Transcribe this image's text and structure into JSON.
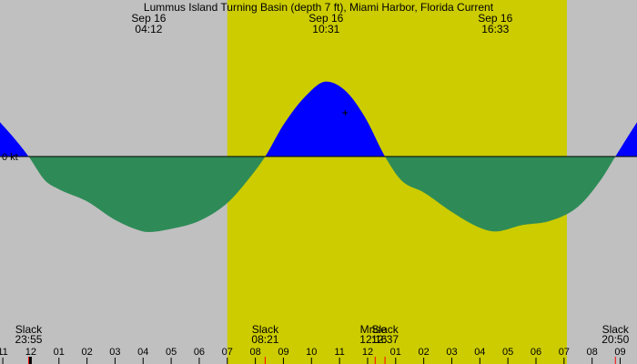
{
  "title": "Lummus Island Turning Basin (depth 7 ft), Miami Harbor, Florida Current",
  "chart_data": {
    "type": "area",
    "title": "Lummus Island Turning Basin (depth 7 ft), Miami Harbor, Florida Current",
    "xlabel": "",
    "ylabel": "",
    "y_unit": "kt",
    "zero_label": "0 kt",
    "ylim": [
      -1.5,
      1.25
    ],
    "colors": {
      "background": "#c0c0c0",
      "daylight": "#cccc00",
      "flood": "#0000ff",
      "ebb": "#2e8b57",
      "zero_line": "#000000",
      "moon_marker": "#ff0000"
    },
    "daylight_hours": [
      7.0,
      19.1
    ],
    "events": [
      {
        "date": "Sep 16",
        "time": "04:12",
        "hour": 4.2
      },
      {
        "date": "Sep 16",
        "time": "10:31",
        "hour": 10.52
      },
      {
        "date": "Sep 16",
        "time": "16:33",
        "hour": 16.55
      }
    ],
    "slack_events": [
      {
        "label": "Slack",
        "time": "23:55",
        "hour": -0.08
      },
      {
        "label": "Slack",
        "time": "08:21",
        "hour": 8.35
      },
      {
        "label": "Slack",
        "time": "12:37",
        "hour": 12.62
      },
      {
        "label": "Slack",
        "time": "20:50",
        "hour": 20.83
      }
    ],
    "moon_events": [
      {
        "label": "Mrise",
        "time": "12:16",
        "hour": 12.27
      }
    ],
    "x_ticks": [
      {
        "label": "11",
        "hour": -1
      },
      {
        "label": "12",
        "hour": 0
      },
      {
        "label": "01",
        "hour": 1
      },
      {
        "label": "02",
        "hour": 2
      },
      {
        "label": "03",
        "hour": 3
      },
      {
        "label": "04",
        "hour": 4
      },
      {
        "label": "05",
        "hour": 5
      },
      {
        "label": "06",
        "hour": 6
      },
      {
        "label": "07",
        "hour": 7
      },
      {
        "label": "08",
        "hour": 8
      },
      {
        "label": "09",
        "hour": 9
      },
      {
        "label": "10",
        "hour": 10
      },
      {
        "label": "11",
        "hour": 11
      },
      {
        "label": "12",
        "hour": 12
      },
      {
        "label": "01",
        "hour": 13
      },
      {
        "label": "02",
        "hour": 14
      },
      {
        "label": "03",
        "hour": 15
      },
      {
        "label": "04",
        "hour": 16
      },
      {
        "label": "05",
        "hour": 17
      },
      {
        "label": "06",
        "hour": 18
      },
      {
        "label": "07",
        "hour": 19
      },
      {
        "label": "08",
        "hour": 20
      },
      {
        "label": "09",
        "hour": 21
      }
    ],
    "xlim": [
      -1.1,
      21.6
    ],
    "series": [
      {
        "values": [
          {
            "x": -1.1,
            "y": 0.65
          },
          {
            "x": -0.6,
            "y": 0.35
          },
          {
            "x": -0.08,
            "y": 0
          },
          {
            "x": 0.5,
            "y": -0.45
          },
          {
            "x": 1.0,
            "y": -0.62
          },
          {
            "x": 2.0,
            "y": -0.85
          },
          {
            "x": 3.0,
            "y": -1.2
          },
          {
            "x": 4.0,
            "y": -1.42
          },
          {
            "x": 4.2,
            "y": -1.43
          },
          {
            "x": 5.0,
            "y": -1.37
          },
          {
            "x": 6.0,
            "y": -1.22
          },
          {
            "x": 7.0,
            "y": -0.88
          },
          {
            "x": 7.8,
            "y": -0.4
          },
          {
            "x": 8.35,
            "y": 0
          },
          {
            "x": 9.0,
            "y": 0.6
          },
          {
            "x": 9.8,
            "y": 1.15
          },
          {
            "x": 10.52,
            "y": 1.42
          },
          {
            "x": 11.2,
            "y": 1.25
          },
          {
            "x": 11.9,
            "y": 0.75
          },
          {
            "x": 12.62,
            "y": 0
          },
          {
            "x": 13.2,
            "y": -0.45
          },
          {
            "x": 14.0,
            "y": -0.68
          },
          {
            "x": 15.0,
            "y": -1.05
          },
          {
            "x": 16.0,
            "y": -1.35
          },
          {
            "x": 16.55,
            "y": -1.42
          },
          {
            "x": 17.5,
            "y": -1.3
          },
          {
            "x": 18.5,
            "y": -1.22
          },
          {
            "x": 19.5,
            "y": -0.95
          },
          {
            "x": 20.3,
            "y": -0.45
          },
          {
            "x": 20.83,
            "y": 0
          },
          {
            "x": 21.3,
            "y": 0.4
          },
          {
            "x": 21.6,
            "y": 0.65
          }
        ]
      }
    ]
  }
}
